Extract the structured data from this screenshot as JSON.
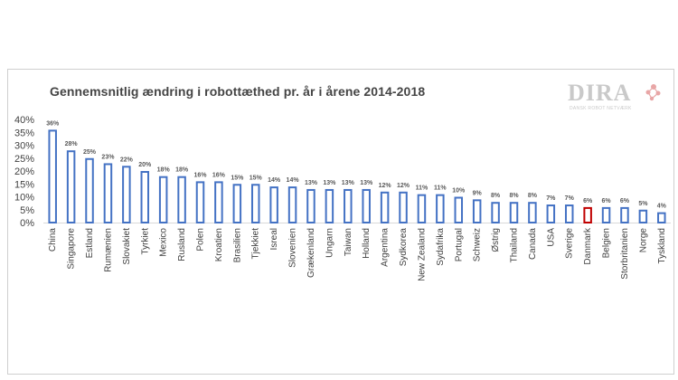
{
  "chart_data": {
    "type": "bar",
    "title": "Gennemsnitlig ændring i robottæthed pr. år i årene 2014-2018",
    "xlabel": "",
    "ylabel": "",
    "ylim": [
      0,
      40
    ],
    "yticks": [
      "0%",
      "5%",
      "10%",
      "15%",
      "20%",
      "25%",
      "30%",
      "35%",
      "40%"
    ],
    "grid": false,
    "categories": [
      "China",
      "Singapore",
      "Estland",
      "Rumænien",
      "Slovakiet",
      "Tyrkiet",
      "Mexico",
      "Rusland",
      "Polen",
      "Kroatien",
      "Brasilien",
      "Tjekkiet",
      "Isreal",
      "Slovenien",
      "Grækenland",
      "Ungarn",
      "Taiwan",
      "Holland",
      "Argentina",
      "Sydkorea",
      "New Zealand",
      "Sydafrika",
      "Portugal",
      "Schweiz",
      "Østrig",
      "Thailand",
      "Canada",
      "USA",
      "Sverige",
      "Danmark",
      "Belgien",
      "Storbritanien",
      "Norge",
      "Tyskland"
    ],
    "values": [
      36,
      28,
      25,
      23,
      22,
      20,
      18,
      18,
      16,
      16,
      15,
      15,
      14,
      14,
      13,
      13,
      13,
      13,
      12,
      12,
      11,
      11,
      10,
      9,
      8,
      8,
      8,
      7,
      7,
      6,
      6,
      6,
      5,
      4
    ],
    "data_labels": [
      "36%",
      "28%",
      "25%",
      "23%",
      "22%",
      "20%",
      "18%",
      "18%",
      "16%",
      "16%",
      "15%",
      "15%",
      "14%",
      "14%",
      "13%",
      "13%",
      "13%",
      "13%",
      "12%",
      "12%",
      "11%",
      "11%",
      "10%",
      "9%",
      "8%",
      "8%",
      "8%",
      "7%",
      "7%",
      "6%",
      "6%",
      "6%",
      "5%",
      "4%"
    ],
    "highlight_index": 29,
    "colors": {
      "bar": "#4472c4",
      "highlight": "#c00000",
      "label": "#595959"
    }
  },
  "logo": {
    "name": "DIRA",
    "subtitle": "DANSK ROBOT NETVÆRK"
  }
}
